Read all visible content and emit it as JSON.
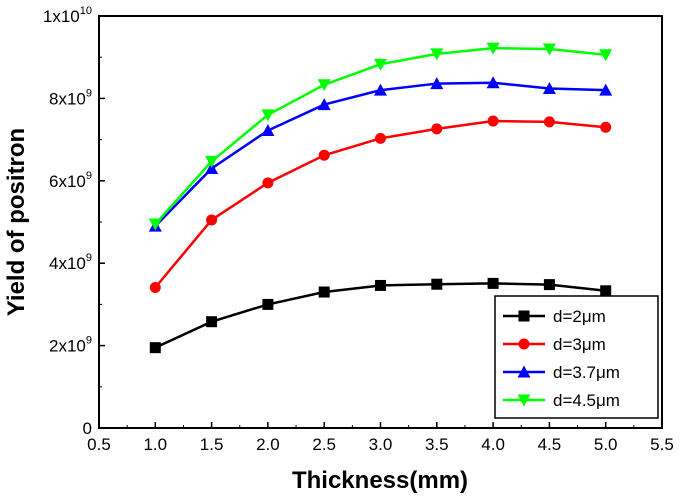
{
  "chart_data": {
    "type": "line",
    "title": "",
    "xlabel": "Thickness(mm)",
    "ylabel": "Yield of positron",
    "xlim": [
      0.5,
      5.5
    ],
    "ylim": [
      0,
      10000000000
    ],
    "x": [
      1.0,
      1.5,
      2.0,
      2.5,
      3.0,
      3.5,
      4.0,
      4.5,
      5.0
    ],
    "x_ticks": [
      0.5,
      1.0,
      1.5,
      2.0,
      2.5,
      3.0,
      3.5,
      4.0,
      4.5,
      5.0,
      5.5
    ],
    "x_tick_labels": [
      "0.5",
      "1.0",
      "1.5",
      "2.0",
      "2.5",
      "3.0",
      "3.5",
      "4.0",
      "4.5",
      "5.0",
      "5.5"
    ],
    "y_ticks": [
      {
        "value": 0,
        "mantissa": "0",
        "exp": ""
      },
      {
        "value": 2000000000,
        "mantissa": "2x10",
        "exp": "9"
      },
      {
        "value": 4000000000,
        "mantissa": "4x10",
        "exp": "9"
      },
      {
        "value": 6000000000,
        "mantissa": "6x10",
        "exp": "9"
      },
      {
        "value": 8000000000,
        "mantissa": "8x10",
        "exp": "9"
      },
      {
        "value": 10000000000,
        "mantissa": "1x10",
        "exp": "10"
      }
    ],
    "grid": false,
    "legend_position": "bottom-right",
    "series": [
      {
        "name": "d=2μm",
        "color": "#000000",
        "marker": "square",
        "values": [
          1950000000,
          2580000000,
          3000000000,
          3300000000,
          3460000000,
          3490000000,
          3510000000,
          3480000000,
          3330000000
        ]
      },
      {
        "name": "d=3μm",
        "color": "#ff0000",
        "marker": "circle",
        "values": [
          3410000000,
          5050000000,
          5950000000,
          6620000000,
          7030000000,
          7260000000,
          7450000000,
          7430000000,
          7300000000
        ]
      },
      {
        "name": "d=3.7μm",
        "color": "#0000ff",
        "marker": "triangle-up",
        "values": [
          4900000000,
          6300000000,
          7220000000,
          7850000000,
          8200000000,
          8360000000,
          8380000000,
          8240000000,
          8200000000
        ]
      },
      {
        "name": "d=4.5μm",
        "color": "#00ff00",
        "marker": "triangle-down",
        "values": [
          4950000000,
          6470000000,
          7600000000,
          8330000000,
          8830000000,
          9080000000,
          9220000000,
          9200000000,
          9060000000
        ]
      }
    ]
  }
}
